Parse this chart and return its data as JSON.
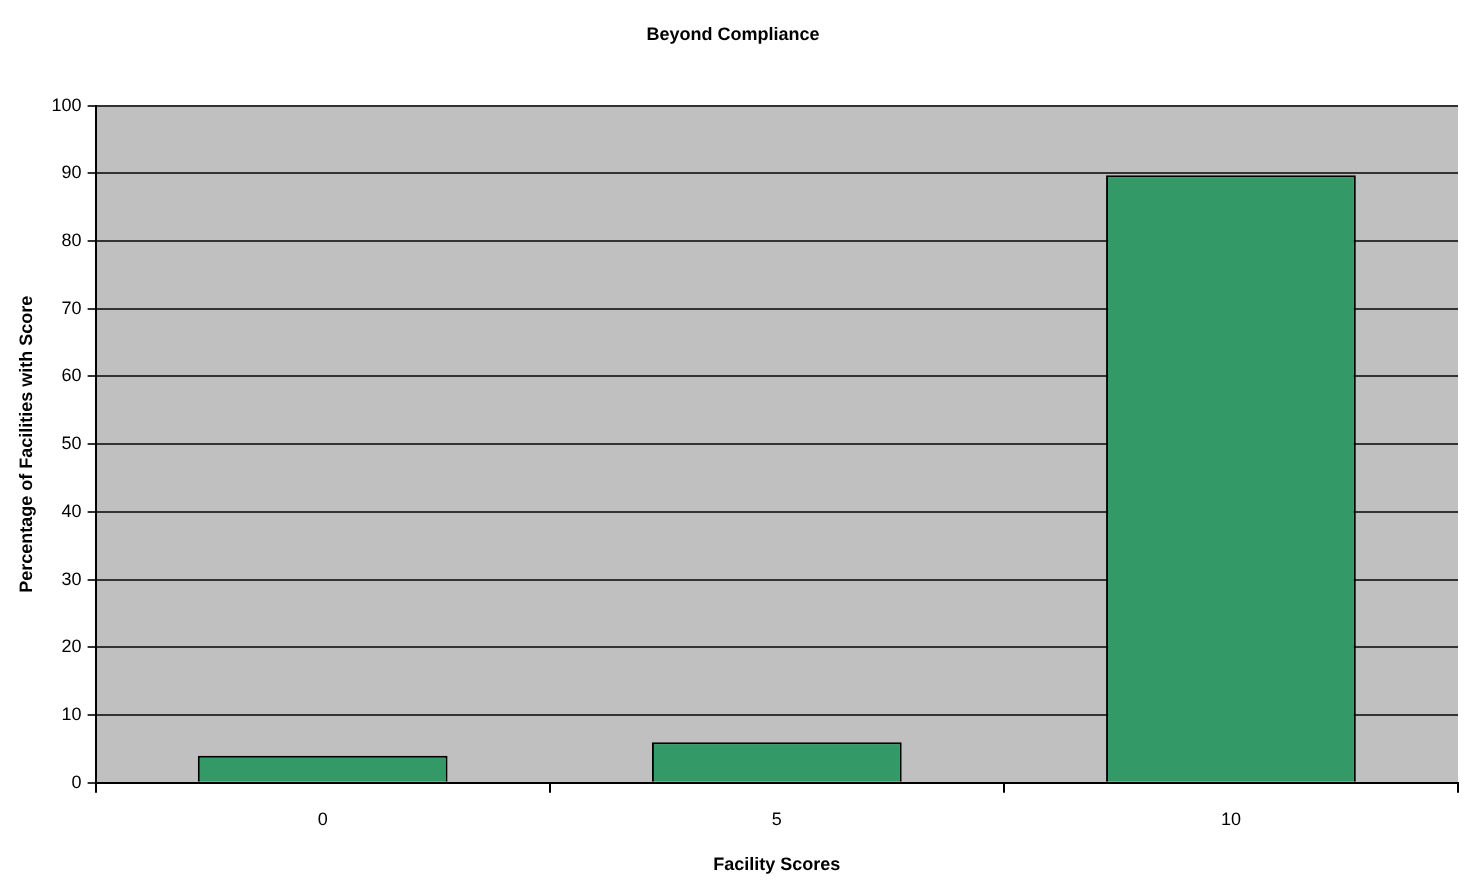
{
  "chart_data": {
    "type": "bar",
    "title": "Beyond Compliance",
    "xlabel": "Facility Scores",
    "ylabel": "Percentage of Facilities with Score",
    "categories": [
      "0",
      "5",
      "10"
    ],
    "values": [
      4,
      6,
      89.7
    ],
    "color": "#339966",
    "ylim": [
      0,
      100
    ],
    "yticks": [
      0,
      10,
      20,
      30,
      40,
      50,
      60,
      70,
      80,
      90,
      100
    ],
    "grid": "y"
  }
}
